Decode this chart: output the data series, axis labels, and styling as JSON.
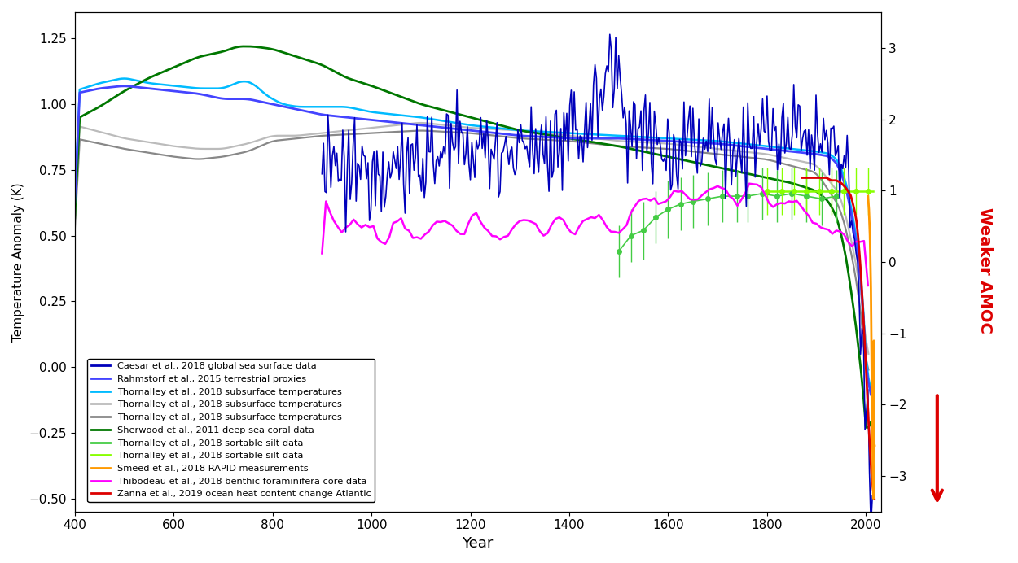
{
  "xlabel": "Year",
  "ylabel": "Temperature Anomaly (K)",
  "xlim": [
    400,
    2030
  ],
  "ylim_left": [
    -0.55,
    1.35
  ],
  "ylim_right": [
    -3.5,
    3.5
  ],
  "xticks": [
    400,
    600,
    800,
    1000,
    1200,
    1400,
    1600,
    1800,
    2000
  ],
  "yticks_right": [
    -3,
    -2,
    -1,
    0,
    1,
    2,
    3
  ],
  "background": "#ffffff",
  "legend_entries": [
    {
      "label": "Caesar et al., 2018 global sea surface data",
      "color": "#0000bb"
    },
    {
      "label": "Rahmstorf et al., 2015 terrestrial proxies",
      "color": "#4444ff"
    },
    {
      "label": "Thornalley et al., 2018 subsurface temperatures",
      "color": "#00bbff"
    },
    {
      "label": "Thornalley et al., 2018 subsurface temperatures",
      "color": "#bbbbbb"
    },
    {
      "label": "Thornalley et al., 2018 subsurface temperatures",
      "color": "#888888"
    },
    {
      "label": "Sherwood et al., 2011 deep sea coral data",
      "color": "#007700"
    },
    {
      "label": "Thornalley et al., 2018 sortable silt data",
      "color": "#44cc44"
    },
    {
      "label": "Thornalley et al., 2018 sortable silt data",
      "color": "#88ff00"
    },
    {
      "label": "Smeed et al., 2018 RAPID measurements",
      "color": "#ff9900"
    },
    {
      "label": "Thibodeau et al., 2018 benthic foraminifera core data",
      "color": "#ff00ff"
    },
    {
      "label": "Zanna et al., 2019 ocean heat content change Atlantic",
      "color": "#dd0000"
    }
  ],
  "amoc_text": "Weaker AMOC",
  "amoc_color": "#dd0000"
}
